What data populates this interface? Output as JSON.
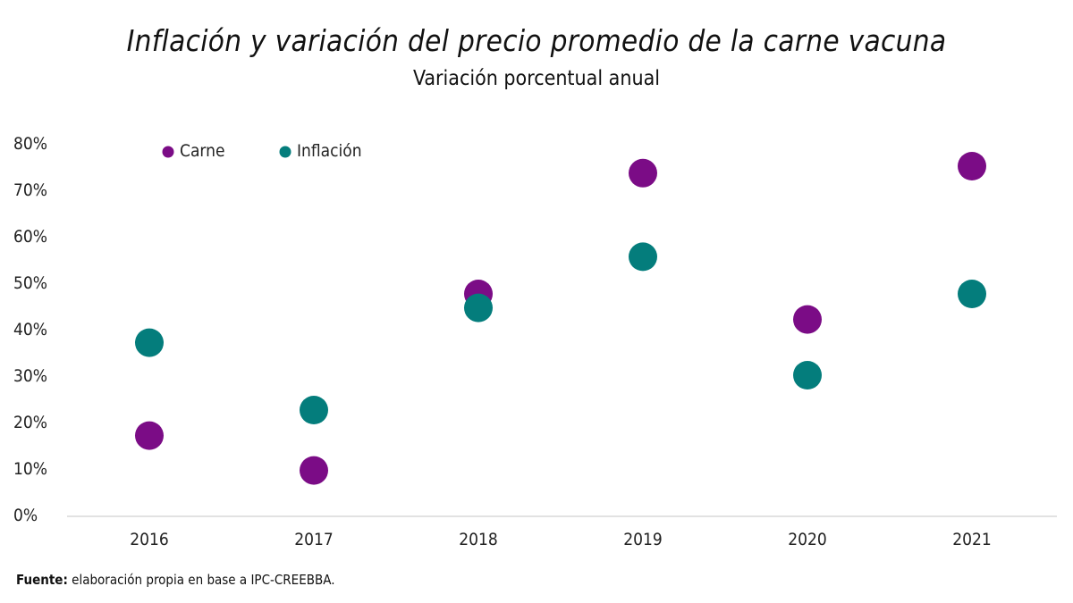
{
  "chart_data": {
    "type": "scatter",
    "title": "Inflación y variación del precio promedio de la carne vacuna",
    "subtitle": "Variación porcentual anual",
    "categories": [
      "2016",
      "2017",
      "2018",
      "2019",
      "2020",
      "2021"
    ],
    "series": [
      {
        "name": "Carne",
        "color": "#7b0c86",
        "values": [
          17,
          9.5,
          47.5,
          73.5,
          42,
          75
        ]
      },
      {
        "name": "Inflación",
        "color": "#047d7c",
        "values": [
          37,
          22.5,
          44.5,
          55.5,
          30,
          47.5
        ]
      }
    ],
    "ylim": [
      0,
      80
    ],
    "yticks": [
      0,
      10,
      20,
      30,
      40,
      50,
      60,
      70,
      80
    ],
    "ytick_labels": [
      "0%",
      "10%",
      "20%",
      "30%",
      "40%",
      "50%",
      "60%",
      "70%",
      "80%"
    ],
    "grid": false,
    "legend_position": "top-left",
    "xlabel": "",
    "ylabel": ""
  },
  "source": {
    "label": "Fuente:",
    "text": "elaboración propia en base a IPC-CREEBBA."
  }
}
